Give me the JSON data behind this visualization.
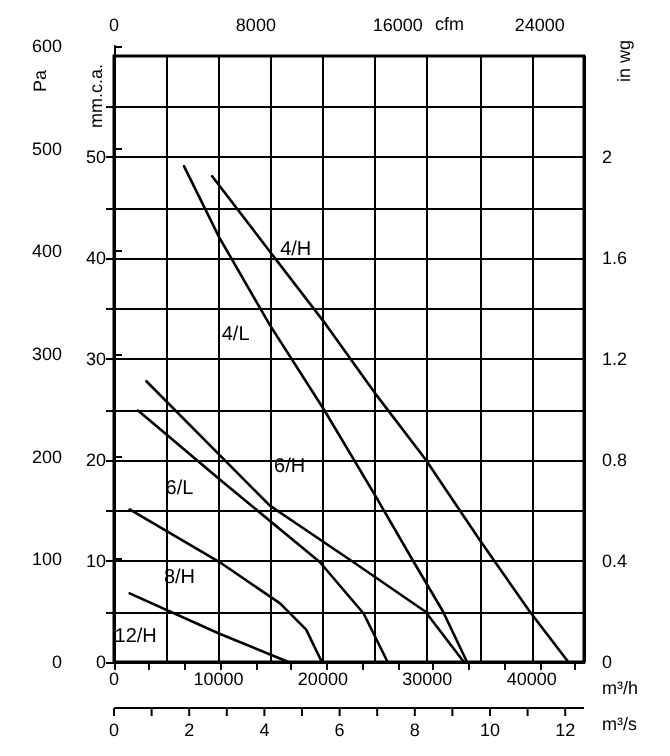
{
  "chart_data": {
    "type": "line",
    "xlabel": "m³/h",
    "ylabel": "mm.c.a.",
    "x2label": "cfm",
    "y2label": "Pa",
    "y3label": "in wg",
    "xlim": [
      0,
      45000
    ],
    "xticks": [
      0,
      {
        "value": 5000,
        "label": null
      },
      10000,
      {
        "value": 15000,
        "label": null
      },
      20000,
      {
        "value": 25000,
        "label": null
      },
      30000,
      {
        "value": 35000,
        "label": null
      },
      40000,
      {
        "value": 45000,
        "label": null
      }
    ],
    "x2lim": [
      0,
      26500
    ],
    "x2ticks": [
      0,
      {
        "value": 2000,
        "label": null
      },
      {
        "value": 4000,
        "label": null
      },
      {
        "value": 6000,
        "label": null
      },
      8000,
      {
        "value": 10000,
        "label": null
      },
      {
        "value": 12000,
        "label": null
      },
      {
        "value": 14000,
        "label": null
      },
      16000,
      {
        "value": 18000,
        "label": null
      },
      {
        "value": 20000,
        "label": null
      },
      {
        "value": 22000,
        "label": null
      },
      24000,
      {
        "value": 26000,
        "label": null
      }
    ],
    "ylim": [
      0,
      60
    ],
    "yticks": [
      0,
      {
        "value": 5,
        "label": null
      },
      10,
      {
        "value": 15,
        "label": null
      },
      20,
      {
        "value": 25,
        "label": null
      },
      30,
      {
        "value": 35,
        "label": null
      },
      40,
      {
        "value": 45,
        "label": null
      },
      50,
      {
        "value": 55,
        "label": null
      }
    ],
    "y2lim": [
      0,
      600
    ],
    "y2ticks": [
      0,
      100,
      200,
      300,
      400,
      500,
      600
    ],
    "y3lim": [
      0,
      2.4
    ],
    "y3ticks": [
      0,
      {
        "value": 0.2,
        "label": null
      },
      0.4,
      {
        "value": 0.6,
        "label": null
      },
      0.8,
      {
        "value": 1,
        "label": null
      },
      1.2,
      {
        "value": 1.4,
        "label": null
      },
      1.6,
      {
        "value": 1.8,
        "label": null
      },
      2,
      {
        "value": 2.2,
        "label": null
      }
    ],
    "grid": true,
    "series": [
      {
        "name": "4/H",
        "color": "#000000",
        "x": [
          9400,
          15100,
          20300,
          25000,
          29800,
          35000,
          39800,
          43500
        ],
        "values": [
          48.1,
          40.4,
          33.4,
          26.6,
          20.1,
          12.1,
          5,
          0
        ]
      },
      {
        "name": "4/L",
        "color": "#000000",
        "x": [
          6700,
          10100,
          14900,
          20100,
          25000,
          28700,
          31500,
          33800
        ],
        "values": [
          49.1,
          42,
          33.4,
          25,
          16.5,
          9.9,
          5,
          0
        ]
      },
      {
        "name": "6/H",
        "color": "#000000",
        "x": [
          3100,
          10100,
          14900,
          22900,
          29800,
          33500
        ],
        "values": [
          27.8,
          20.5,
          15.5,
          9.9,
          5,
          0
        ]
      },
      {
        "name": "6/L",
        "color": "#000000",
        "x": [
          2300,
          10100,
          19700,
          23900,
          26200
        ],
        "values": [
          24.9,
          18.1,
          9.9,
          4.8,
          0
        ]
      },
      {
        "name": "8/H",
        "color": "#000000",
        "x": [
          1500,
          10100,
          15900,
          18400,
          19900
        ],
        "values": [
          15.1,
          9.9,
          5.8,
          3.2,
          0
        ]
      },
      {
        "name": "12/H",
        "color": "#000000",
        "x": [
          1500,
          10100,
          16700
        ],
        "values": [
          6.8,
          2.8,
          0
        ]
      }
    ],
    "annotations": [
      "0",
      "2",
      "4",
      "6",
      "8",
      "10",
      "12",
      "m³/s"
    ]
  }
}
